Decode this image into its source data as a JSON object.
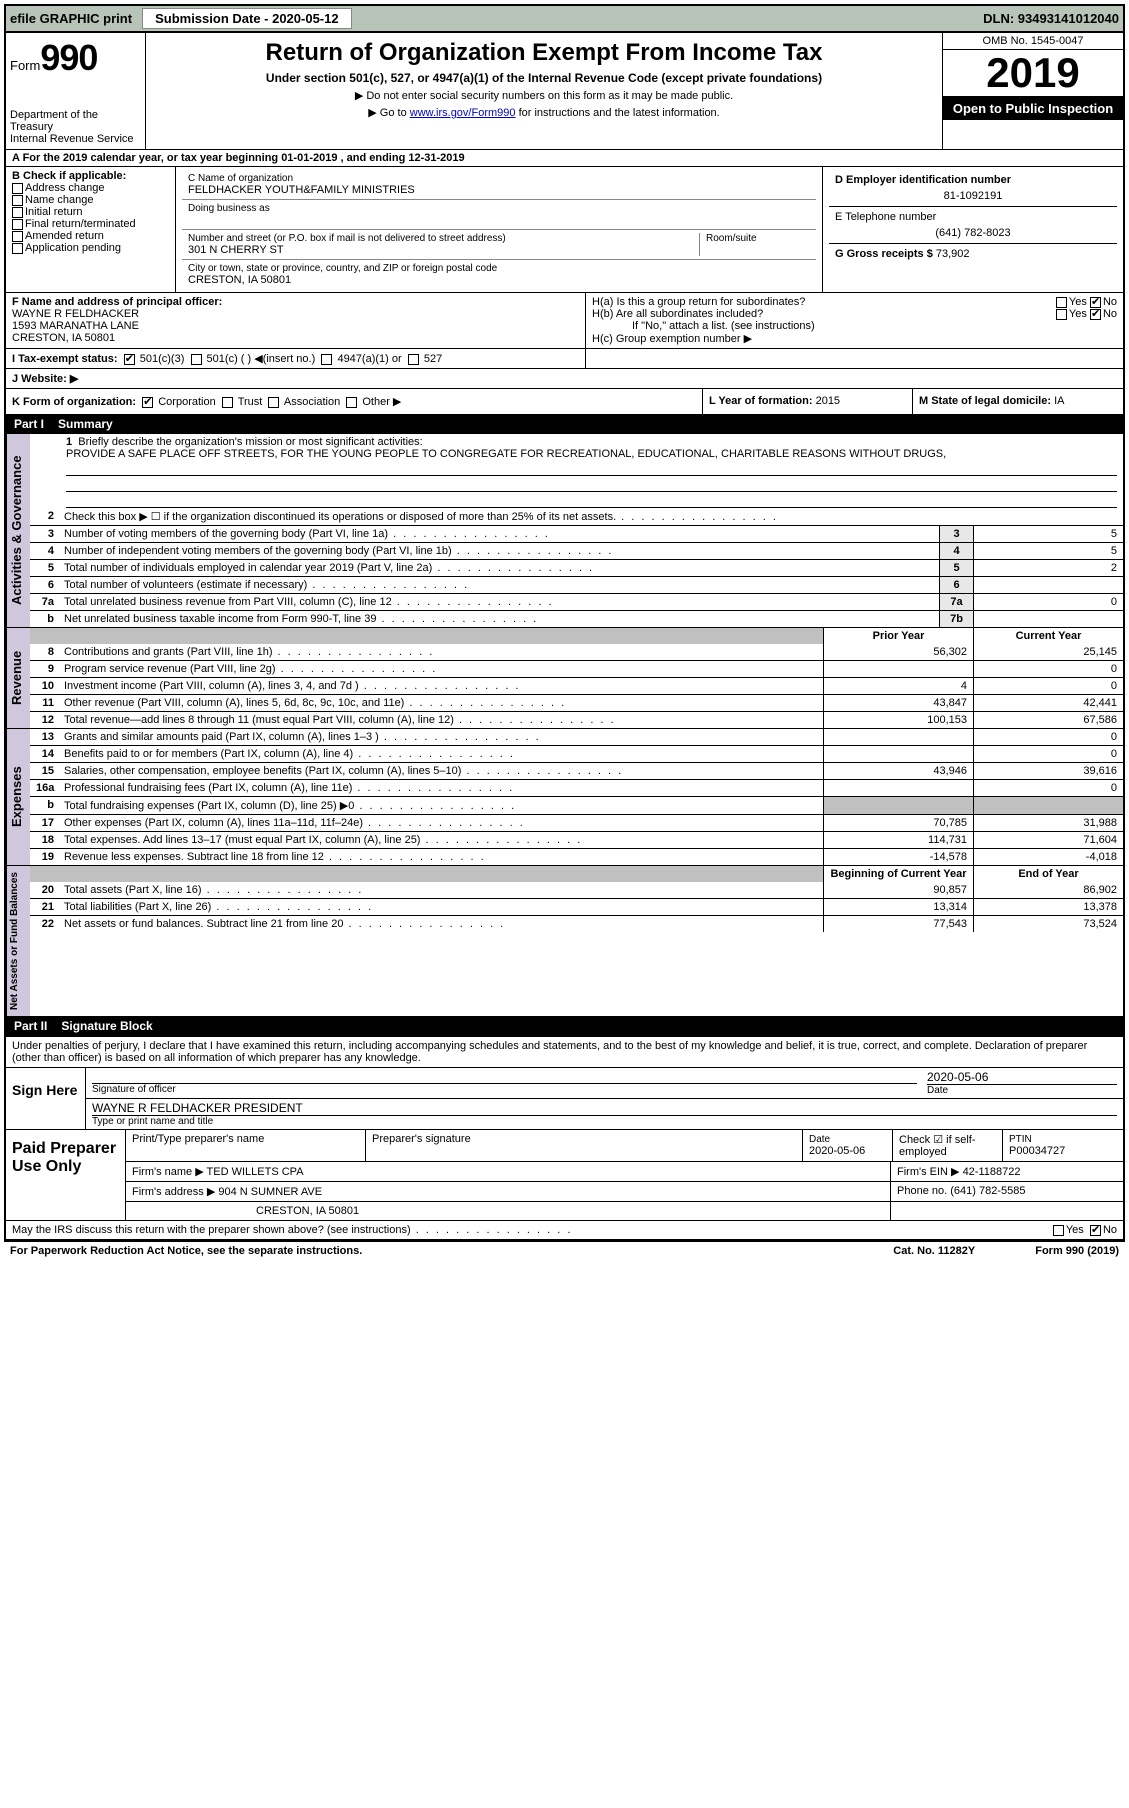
{
  "topbar": {
    "efile": "efile GRAPHIC print",
    "subdate_label": "Submission Date - 2020-05-12",
    "dln": "DLN: 93493141012040"
  },
  "header": {
    "form_word": "Form",
    "form_num": "990",
    "dept": "Department of the Treasury\nInternal Revenue Service",
    "title": "Return of Organization Exempt From Income Tax",
    "sub": "Under section 501(c), 527, or 4947(a)(1) of the Internal Revenue Code (except private foundations)",
    "note1": "▶ Do not enter social security numbers on this form as it may be made public.",
    "note2_pre": "▶ Go to ",
    "note2_link": "www.irs.gov/Form990",
    "note2_post": " for instructions and the latest information.",
    "omb": "OMB No. 1545-0047",
    "year": "2019",
    "open": "Open to Public Inspection"
  },
  "row_a": "A For the 2019 calendar year, or tax year beginning 01-01-2019   , and ending 12-31-2019",
  "section_b": {
    "label": "B Check if applicable:",
    "items": [
      "Address change",
      "Name change",
      "Initial return",
      "Final return/terminated",
      "Amended return",
      "Application pending"
    ]
  },
  "section_c": {
    "name_label": "C Name of organization",
    "name": "FELDHACKER YOUTH&FAMILY MINISTRIES",
    "dba": "Doing business as",
    "street_label": "Number and street (or P.O. box if mail is not delivered to street address)",
    "room_label": "Room/suite",
    "street": "301 N CHERRY ST",
    "city_label": "City or town, state or province, country, and ZIP or foreign postal code",
    "city": "CRESTON, IA  50801"
  },
  "section_d": {
    "label": "D Employer identification number",
    "value": "81-1092191"
  },
  "section_e": {
    "label": "E Telephone number",
    "value": "(641) 782-8023"
  },
  "section_g": {
    "label": "G Gross receipts $",
    "value": "73,902"
  },
  "section_f": {
    "label": "F  Name and address of principal officer:",
    "name": "WAYNE R FELDHACKER",
    "addr1": "1593 MARANATHA LANE",
    "addr2": "CRESTON, IA  50801"
  },
  "section_h": {
    "ha": "H(a)  Is this a group return for subordinates?",
    "hb": "H(b)  Are all subordinates included?",
    "hb_note": "If \"No,\" attach a list. (see instructions)",
    "hc": "H(c)  Group exemption number ▶",
    "yes": "Yes",
    "no": "No"
  },
  "row_i": {
    "label": "I   Tax-exempt status:",
    "opts": [
      "501(c)(3)",
      "501(c) (  ) ◀(insert no.)",
      "4947(a)(1) or",
      "527"
    ]
  },
  "row_j": {
    "label": "J   Website: ▶"
  },
  "row_k": {
    "label": "K Form of organization:",
    "opts": [
      "Corporation",
      "Trust",
      "Association",
      "Other ▶"
    ],
    "l_label": "L Year of formation:",
    "l_val": "2015",
    "m_label": "M State of legal domicile:",
    "m_val": "IA"
  },
  "part1": {
    "num": "Part I",
    "title": "Summary"
  },
  "mission": {
    "num": "1",
    "label": "Briefly describe the organization's mission or most significant activities:",
    "text": "PROVIDE A SAFE PLACE OFF STREETS, FOR THE YOUNG PEOPLE TO CONGREGATE FOR RECREATIONAL, EDUCATIONAL, CHARITABLE REASONS WITHOUT DRUGS,"
  },
  "gov_lines": [
    {
      "n": "2",
      "t": "Check this box ▶ ☐  if the organization discontinued its operations or disposed of more than 25% of its net assets.",
      "box": "",
      "v": ""
    },
    {
      "n": "3",
      "t": "Number of voting members of the governing body (Part VI, line 1a)",
      "box": "3",
      "v": "5"
    },
    {
      "n": "4",
      "t": "Number of independent voting members of the governing body (Part VI, line 1b)",
      "box": "4",
      "v": "5"
    },
    {
      "n": "5",
      "t": "Total number of individuals employed in calendar year 2019 (Part V, line 2a)",
      "box": "5",
      "v": "2"
    },
    {
      "n": "6",
      "t": "Total number of volunteers (estimate if necessary)",
      "box": "6",
      "v": ""
    },
    {
      "n": "7a",
      "t": "Total unrelated business revenue from Part VIII, column (C), line 12",
      "box": "7a",
      "v": "0"
    },
    {
      "n": "b",
      "t": "Net unrelated business taxable income from Form 990-T, line 39",
      "box": "7b",
      "v": ""
    }
  ],
  "colhdr": {
    "py": "Prior Year",
    "cy": "Current Year"
  },
  "rev_lines": [
    {
      "n": "8",
      "t": "Contributions and grants (Part VIII, line 1h)",
      "py": "56,302",
      "cy": "25,145"
    },
    {
      "n": "9",
      "t": "Program service revenue (Part VIII, line 2g)",
      "py": "",
      "cy": "0"
    },
    {
      "n": "10",
      "t": "Investment income (Part VIII, column (A), lines 3, 4, and 7d )",
      "py": "4",
      "cy": "0"
    },
    {
      "n": "11",
      "t": "Other revenue (Part VIII, column (A), lines 5, 6d, 8c, 9c, 10c, and 11e)",
      "py": "43,847",
      "cy": "42,441"
    },
    {
      "n": "12",
      "t": "Total revenue—add lines 8 through 11 (must equal Part VIII, column (A), line 12)",
      "py": "100,153",
      "cy": "67,586"
    }
  ],
  "exp_lines": [
    {
      "n": "13",
      "t": "Grants and similar amounts paid (Part IX, column (A), lines 1–3 )",
      "py": "",
      "cy": "0"
    },
    {
      "n": "14",
      "t": "Benefits paid to or for members (Part IX, column (A), line 4)",
      "py": "",
      "cy": "0"
    },
    {
      "n": "15",
      "t": "Salaries, other compensation, employee benefits (Part IX, column (A), lines 5–10)",
      "py": "43,946",
      "cy": "39,616"
    },
    {
      "n": "16a",
      "t": "Professional fundraising fees (Part IX, column (A), line 11e)",
      "py": "",
      "cy": "0"
    },
    {
      "n": "b",
      "t": "Total fundraising expenses (Part IX, column (D), line 25) ▶0",
      "py": "SHADE",
      "cy": "SHADE"
    },
    {
      "n": "17",
      "t": "Other expenses (Part IX, column (A), lines 11a–11d, 11f–24e)",
      "py": "70,785",
      "cy": "31,988"
    },
    {
      "n": "18",
      "t": "Total expenses. Add lines 13–17 (must equal Part IX, column (A), line 25)",
      "py": "114,731",
      "cy": "71,604"
    },
    {
      "n": "19",
      "t": "Revenue less expenses. Subtract line 18 from line 12",
      "py": "-14,578",
      "cy": "-4,018"
    }
  ],
  "na_hdr": {
    "b": "Beginning of Current Year",
    "e": "End of Year"
  },
  "na_lines": [
    {
      "n": "20",
      "t": "Total assets (Part X, line 16)",
      "py": "90,857",
      "cy": "86,902"
    },
    {
      "n": "21",
      "t": "Total liabilities (Part X, line 26)",
      "py": "13,314",
      "cy": "13,378"
    },
    {
      "n": "22",
      "t": "Net assets or fund balances. Subtract line 21 from line 20",
      "py": "77,543",
      "cy": "73,524"
    }
  ],
  "part2": {
    "num": "Part II",
    "title": "Signature Block"
  },
  "perjury": "Under penalties of perjury, I declare that I have examined this return, including accompanying schedules and statements, and to the best of my knowledge and belief, it is true, correct, and complete. Declaration of preparer (other than officer) is based on all information of which preparer has any knowledge.",
  "sign": {
    "here": "Sign Here",
    "sig_label": "Signature of officer",
    "date_label": "Date",
    "date": "2020-05-06",
    "name": "WAYNE R FELDHACKER  PRESIDENT",
    "name_label": "Type or print name and title"
  },
  "prep": {
    "label": "Paid Preparer Use Only",
    "r1": {
      "c1": "Print/Type preparer's name",
      "c2": "Preparer's signature",
      "c3": "Date",
      "c3v": "2020-05-06",
      "c4": "Check ☑ if self-employed",
      "c5": "PTIN",
      "c5v": "P00034727"
    },
    "r2": {
      "c1": "Firm's name   ▶",
      "c1v": "TED WILLETS CPA",
      "c2": "Firm's EIN ▶",
      "c2v": "42-1188722"
    },
    "r3": {
      "c1": "Firm's address ▶",
      "c1v": "904 N SUMNER AVE",
      "c2": "Phone no.",
      "c2v": "(641) 782-5585"
    },
    "r3b": "CRESTON, IA  50801"
  },
  "discuss": "May the IRS discuss this return with the preparer shown above? (see instructions)",
  "footer": {
    "l": "For Paperwork Reduction Act Notice, see the separate instructions.",
    "m": "Cat. No. 11282Y",
    "r": "Form 990 (2019)"
  },
  "sidetabs": {
    "gov": "Activities & Governance",
    "rev": "Revenue",
    "exp": "Expenses",
    "na": "Net Assets or Fund Balances"
  }
}
